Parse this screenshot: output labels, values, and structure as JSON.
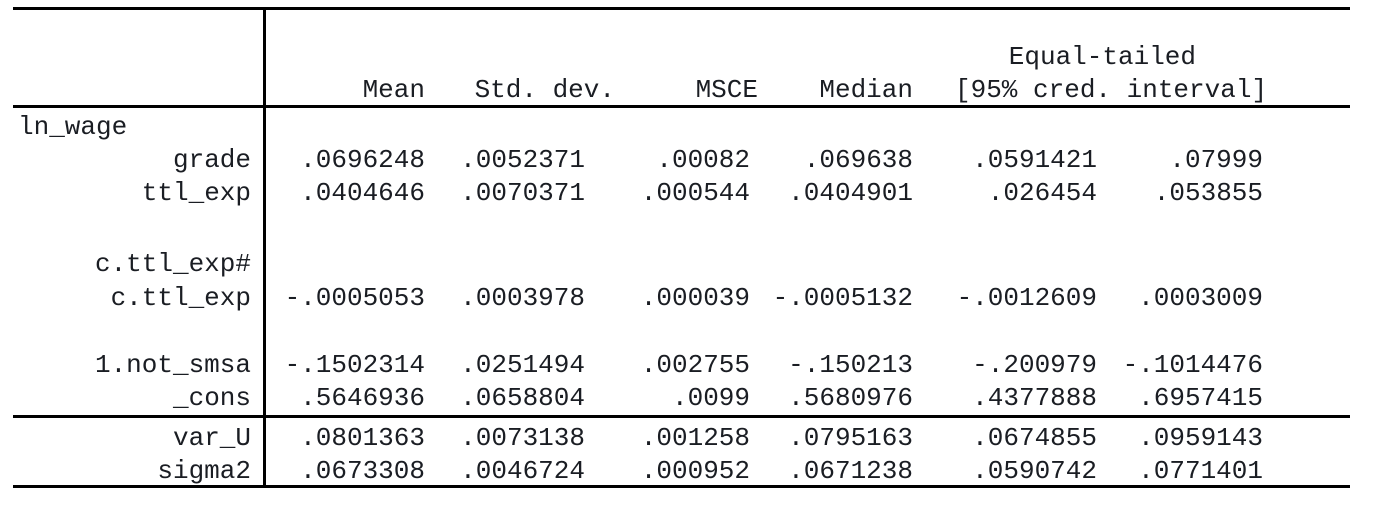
{
  "table": {
    "header": {
      "equal_tailed_label": "Equal-tailed",
      "mean": "Mean",
      "std_dev": "Std. dev.",
      "msce": "MSCE",
      "median": "Median",
      "cred_interval": "[95% cred. interval]"
    },
    "rows": [
      {
        "label": "ln_wage",
        "label_align": "left",
        "values": []
      },
      {
        "label": "grade",
        "label_align": "right",
        "values": [
          ".0696248",
          ".0052371",
          ".00082",
          ".069638",
          ".0591421",
          ".07999"
        ]
      },
      {
        "label": "ttl_exp",
        "label_align": "right",
        "values": [
          ".0404646",
          ".0070371",
          ".000544",
          ".0404901",
          ".026454",
          ".053855"
        ]
      },
      {
        "label": "c.ttl_exp#",
        "label_align": "right",
        "values": []
      },
      {
        "label": "c.ttl_exp",
        "label_align": "right",
        "values": [
          "-.0005053",
          ".0003978",
          ".000039",
          "-.0005132",
          "-.0012609",
          ".0003009"
        ]
      },
      {
        "label": "1.not_smsa",
        "label_align": "right",
        "values": [
          "-.1502314",
          ".0251494",
          ".002755",
          "-.150213",
          "-.200979",
          "-.1014476"
        ]
      },
      {
        "label": "_cons",
        "label_align": "right",
        "values": [
          ".5646936",
          ".0658804",
          ".0099",
          ".5680976",
          ".4377888",
          ".6957415"
        ]
      },
      {
        "label": "var_U",
        "label_align": "right",
        "values": [
          ".0801363",
          ".0073138",
          ".001258",
          ".0795163",
          ".0674855",
          ".0959143"
        ]
      },
      {
        "label": "sigma2",
        "label_align": "right",
        "values": [
          ".0673308",
          ".0046724",
          ".000952",
          ".0671238",
          ".0590742",
          ".0771401"
        ]
      }
    ],
    "colors": {
      "rule": "#000000",
      "text": "#1a1d23",
      "background": "#ffffff"
    }
  }
}
